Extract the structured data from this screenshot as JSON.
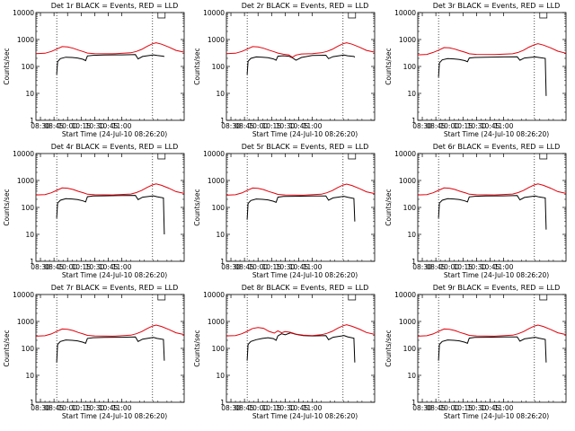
{
  "colors": {
    "events": "#000000",
    "lld": "#e0000a",
    "background": "#ffffff",
    "frame": "#000000"
  },
  "shared": {
    "type": "line",
    "title_suffix": "BLACK = Events, RED = LLD",
    "ylabel": "Counts/sec",
    "xlabel": "Start Time (24-Jul-10 08:26:20)",
    "xticks": [
      "08:30",
      "08:45",
      "10:00",
      "10:15",
      "10:30",
      "10:45",
      "11:00"
    ],
    "xlim_minutes": [
      -5,
      159
    ],
    "yscale": "log",
    "ylim": [
      1,
      10000
    ],
    "yticks": [
      "1",
      "10",
      "100",
      "1000",
      "10000"
    ],
    "markers_minutes": [
      18,
      124
    ]
  },
  "chart_data": [
    {
      "type": "line",
      "title_prefix": "Det 1r",
      "series": [
        {
          "name": "Events",
          "x": [
            18,
            19,
            22,
            28,
            35,
            41,
            47,
            50,
            52,
            58,
            70,
            90,
            105,
            108,
            113,
            125,
            129,
            136,
            137
          ],
          "y": [
            50,
            150,
            195,
            220,
            215,
            205,
            185,
            165,
            245,
            260,
            265,
            270,
            275,
            190,
            235,
            270,
            255,
            240,
            230
          ]
        },
        {
          "name": "LLD",
          "x": [
            -5,
            5,
            12,
            18,
            24,
            30,
            36,
            42,
            48,
            52,
            60,
            80,
            100,
            106,
            112,
            118,
            124,
            128,
            134,
            142,
            150,
            159
          ],
          "y": [
            300,
            310,
            360,
            440,
            545,
            530,
            475,
            405,
            350,
            315,
            300,
            295,
            320,
            360,
            430,
            560,
            695,
            760,
            670,
            525,
            395,
            340
          ]
        }
      ]
    },
    {
      "type": "line",
      "title_prefix": "Det 2r",
      "series": [
        {
          "name": "Events",
          "x": [
            18,
            19,
            22,
            28,
            35,
            41,
            47,
            50,
            52,
            58,
            64,
            68,
            72,
            78,
            90,
            105,
            108,
            113,
            125,
            129,
            136,
            137
          ],
          "y": [
            50,
            155,
            200,
            225,
            220,
            210,
            190,
            170,
            240,
            250,
            240,
            210,
            170,
            215,
            255,
            262,
            195,
            230,
            265,
            250,
            235,
            220
          ]
        },
        {
          "name": "LLD",
          "x": [
            -5,
            5,
            12,
            18,
            24,
            30,
            36,
            42,
            48,
            52,
            58,
            64,
            68,
            72,
            78,
            90,
            100,
            106,
            112,
            118,
            124,
            128,
            134,
            142,
            150,
            159
          ],
          "y": [
            300,
            310,
            360,
            440,
            545,
            530,
            475,
            405,
            350,
            315,
            285,
            270,
            220,
            265,
            290,
            300,
            320,
            360,
            430,
            560,
            695,
            760,
            670,
            525,
            395,
            340
          ]
        }
      ]
    },
    {
      "type": "line",
      "title_prefix": "Det 3r",
      "series": [
        {
          "name": "Events",
          "x": [
            18,
            19,
            22,
            28,
            35,
            41,
            47,
            50,
            52,
            58,
            70,
            90,
            105,
            108,
            113,
            125,
            129,
            136,
            137
          ],
          "y": [
            40,
            135,
            175,
            195,
            190,
            180,
            165,
            150,
            205,
            215,
            220,
            225,
            228,
            170,
            205,
            225,
            215,
            200,
            8
          ]
        },
        {
          "name": "LLD",
          "x": [
            -5,
            5,
            12,
            18,
            24,
            30,
            36,
            42,
            48,
            52,
            60,
            80,
            100,
            106,
            112,
            118,
            124,
            128,
            134,
            142,
            150,
            159
          ],
          "y": [
            270,
            280,
            330,
            400,
            500,
            490,
            440,
            380,
            330,
            295,
            280,
            275,
            295,
            330,
            400,
            520,
            640,
            700,
            620,
            490,
            370,
            310
          ]
        }
      ]
    },
    {
      "type": "line",
      "title_prefix": "Det 4r",
      "series": [
        {
          "name": "Events",
          "x": [
            18,
            19,
            22,
            28,
            35,
            41,
            47,
            50,
            52,
            58,
            70,
            90,
            105,
            108,
            113,
            125,
            129,
            136,
            137
          ],
          "y": [
            40,
            145,
            185,
            210,
            205,
            195,
            175,
            160,
            250,
            265,
            270,
            275,
            280,
            195,
            240,
            270,
            250,
            225,
            10
          ]
        },
        {
          "name": "LLD",
          "x": [
            -5,
            5,
            12,
            18,
            24,
            30,
            36,
            42,
            48,
            52,
            60,
            80,
            100,
            106,
            112,
            118,
            124,
            128,
            134,
            142,
            150,
            159
          ],
          "y": [
            290,
            300,
            350,
            430,
            530,
            515,
            465,
            395,
            345,
            310,
            295,
            290,
            315,
            355,
            425,
            555,
            685,
            745,
            660,
            515,
            385,
            330
          ]
        }
      ]
    },
    {
      "type": "line",
      "title_prefix": "Det 5r",
      "series": [
        {
          "name": "Events",
          "x": [
            18,
            19,
            22,
            28,
            35,
            41,
            47,
            50,
            52,
            58,
            70,
            90,
            105,
            108,
            113,
            125,
            129,
            136,
            137
          ],
          "y": [
            35,
            140,
            180,
            205,
            200,
            190,
            170,
            155,
            240,
            255,
            260,
            265,
            268,
            185,
            225,
            260,
            240,
            215,
            30
          ]
        },
        {
          "name": "LLD",
          "x": [
            -5,
            5,
            12,
            18,
            24,
            30,
            36,
            42,
            48,
            52,
            60,
            80,
            100,
            106,
            112,
            118,
            124,
            128,
            134,
            142,
            150,
            159
          ],
          "y": [
            285,
            295,
            345,
            425,
            525,
            510,
            460,
            390,
            340,
            305,
            290,
            285,
            310,
            350,
            420,
            545,
            675,
            735,
            650,
            505,
            380,
            325
          ]
        }
      ]
    },
    {
      "type": "line",
      "title_prefix": "Det 6r",
      "series": [
        {
          "name": "Events",
          "x": [
            18,
            19,
            22,
            28,
            35,
            41,
            47,
            50,
            52,
            58,
            70,
            90,
            105,
            108,
            113,
            125,
            129,
            136,
            137
          ],
          "y": [
            40,
            145,
            185,
            210,
            205,
            195,
            175,
            160,
            245,
            260,
            265,
            270,
            275,
            190,
            235,
            265,
            245,
            225,
            15
          ]
        },
        {
          "name": "LLD",
          "x": [
            -5,
            5,
            12,
            18,
            24,
            30,
            36,
            42,
            48,
            52,
            60,
            80,
            100,
            106,
            112,
            118,
            124,
            128,
            134,
            142,
            150,
            159
          ],
          "y": [
            290,
            300,
            350,
            430,
            530,
            515,
            465,
            395,
            345,
            310,
            295,
            290,
            315,
            355,
            425,
            555,
            685,
            745,
            660,
            515,
            385,
            330
          ]
        }
      ]
    },
    {
      "type": "line",
      "title_prefix": "Det 7r",
      "series": [
        {
          "name": "Events",
          "x": [
            18,
            19,
            22,
            28,
            35,
            41,
            47,
            50,
            52,
            58,
            70,
            90,
            105,
            108,
            113,
            125,
            129,
            136,
            137
          ],
          "y": [
            30,
            140,
            180,
            205,
            200,
            190,
            170,
            155,
            235,
            250,
            255,
            260,
            265,
            180,
            220,
            255,
            235,
            215,
            35
          ]
        },
        {
          "name": "LLD",
          "x": [
            -5,
            5,
            12,
            18,
            24,
            30,
            36,
            42,
            48,
            52,
            60,
            80,
            100,
            106,
            112,
            118,
            124,
            128,
            134,
            142,
            150,
            159
          ],
          "y": [
            285,
            295,
            345,
            425,
            525,
            510,
            460,
            390,
            340,
            305,
            290,
            285,
            310,
            350,
            420,
            545,
            675,
            735,
            650,
            505,
            380,
            325
          ]
        }
      ]
    },
    {
      "type": "line",
      "title_prefix": "Det 8r",
      "series": [
        {
          "name": "Events",
          "x": [
            18,
            19,
            22,
            28,
            35,
            41,
            47,
            50,
            52,
            56,
            60,
            66,
            72,
            80,
            90,
            105,
            108,
            113,
            125,
            129,
            136,
            137
          ],
          "y": [
            35,
            140,
            180,
            210,
            235,
            250,
            230,
            200,
            290,
            350,
            320,
            380,
            330,
            300,
            290,
            300,
            210,
            260,
            300,
            270,
            240,
            30
          ]
        },
        {
          "name": "LLD",
          "x": [
            -5,
            5,
            12,
            18,
            24,
            30,
            36,
            42,
            48,
            52,
            56,
            60,
            66,
            72,
            80,
            90,
            100,
            106,
            112,
            118,
            124,
            128,
            134,
            142,
            150,
            159
          ],
          "y": [
            290,
            300,
            350,
            430,
            550,
            600,
            560,
            430,
            370,
            450,
            380,
            420,
            395,
            340,
            310,
            300,
            320,
            360,
            430,
            560,
            690,
            750,
            660,
            520,
            390,
            330
          ]
        }
      ]
    },
    {
      "type": "line",
      "title_prefix": "Det 9r",
      "series": [
        {
          "name": "Events",
          "x": [
            18,
            19,
            22,
            28,
            35,
            41,
            47,
            50,
            52,
            58,
            70,
            90,
            105,
            108,
            113,
            125,
            129,
            136,
            137
          ],
          "y": [
            35,
            140,
            180,
            205,
            200,
            190,
            170,
            155,
            240,
            255,
            260,
            265,
            268,
            185,
            225,
            260,
            240,
            215,
            30
          ]
        },
        {
          "name": "LLD",
          "x": [
            -5,
            5,
            12,
            18,
            24,
            30,
            36,
            42,
            48,
            52,
            60,
            80,
            100,
            106,
            112,
            118,
            124,
            128,
            134,
            142,
            150,
            159
          ],
          "y": [
            285,
            295,
            345,
            425,
            525,
            510,
            460,
            390,
            340,
            305,
            290,
            285,
            310,
            350,
            420,
            545,
            675,
            735,
            650,
            505,
            380,
            325
          ]
        }
      ]
    }
  ]
}
